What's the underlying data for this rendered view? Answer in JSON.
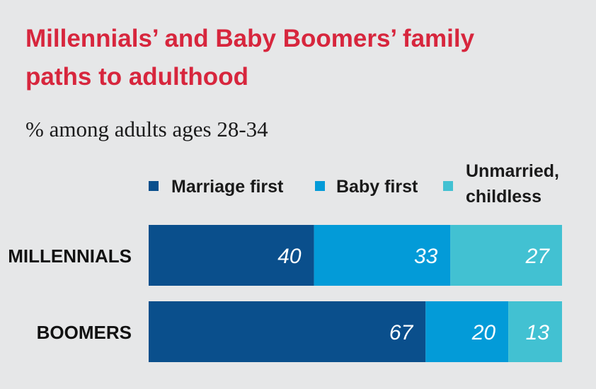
{
  "chart_data": {
    "type": "bar",
    "orientation": "horizontal",
    "stacked": true,
    "title": "Millennials’ and Baby Boomers’ family paths to adulthood",
    "subtitle": "% among adults ages 28-34",
    "categories": [
      "MILLENNIALS",
      "BOOMERS"
    ],
    "series": [
      {
        "name": "Marriage first",
        "values": [
          40,
          67
        ],
        "color": "#0a4f8c"
      },
      {
        "name": "Baby first",
        "values": [
          33,
          20
        ],
        "color": "#039bd8"
      },
      {
        "name": "Unmarried, childless",
        "values": [
          27,
          13
        ],
        "color": "#42c1d2"
      }
    ],
    "xlim": [
      0,
      100
    ],
    "grid": false,
    "legend_position": "top"
  }
}
